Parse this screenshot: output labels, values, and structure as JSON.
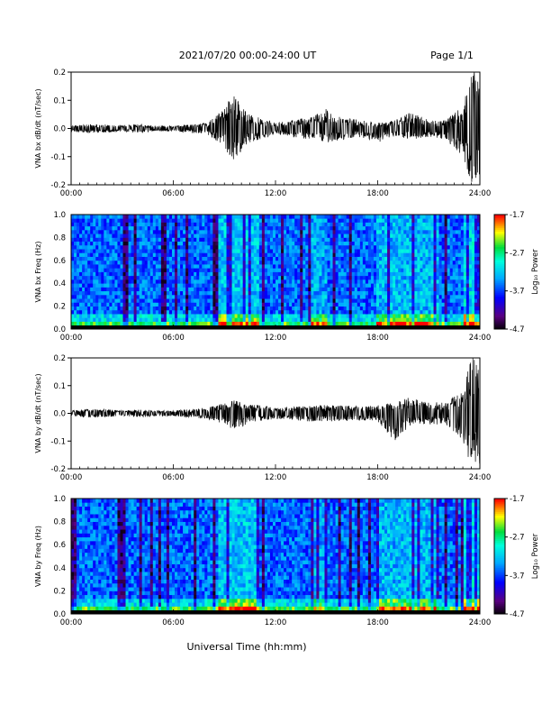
{
  "header": {
    "title": "2021/07/20  00:00-24:00 UT",
    "page": "Page 1/1"
  },
  "xaxis": {
    "label": "Universal Time (hh:mm)",
    "ticks": [
      "00:00",
      "06:00",
      "12:00",
      "18:00",
      "24:00"
    ],
    "range_hours": [
      0,
      24
    ]
  },
  "colorbar": {
    "label": "Log₁₀ Power",
    "ticks": [
      "-1.7",
      "-2.7",
      "-3.7",
      "-4.7"
    ],
    "range": [
      -4.7,
      -1.7
    ],
    "colormap": "rainbow (black-purple-blue-cyan-green-yellow-red)"
  },
  "chart_data": [
    {
      "type": "line",
      "ylabel": "VNA bx dB/dt (nT/sec)",
      "ylim": [
        -0.2,
        0.2
      ],
      "yticks": [
        "0.2",
        "0.1",
        "0.0",
        "-0.1",
        "-0.2"
      ],
      "x": [
        0,
        1,
        2,
        3,
        4,
        5,
        6,
        7,
        8,
        9,
        9.5,
        10,
        10.5,
        11,
        12,
        13,
        14,
        15,
        16,
        17,
        18,
        19,
        20,
        21,
        22,
        23,
        23.5,
        24
      ],
      "envelope_max": [
        0.01,
        0.015,
        0.015,
        0.01,
        0.015,
        0.01,
        0.01,
        0.015,
        0.02,
        0.07,
        0.13,
        0.08,
        0.05,
        0.04,
        0.02,
        0.03,
        0.04,
        0.07,
        0.04,
        0.03,
        0.02,
        0.03,
        0.06,
        0.03,
        0.03,
        0.08,
        0.2,
        0.2
      ],
      "envelope_min": [
        -0.01,
        -0.015,
        -0.015,
        -0.01,
        -0.015,
        -0.01,
        -0.01,
        -0.015,
        -0.02,
        -0.07,
        -0.12,
        -0.08,
        -0.05,
        -0.04,
        -0.02,
        -0.03,
        -0.04,
        -0.05,
        -0.04,
        -0.03,
        -0.05,
        -0.03,
        -0.04,
        -0.03,
        -0.04,
        -0.1,
        -0.2,
        -0.2
      ]
    },
    {
      "type": "heatmap",
      "ylabel": "VNA bx Freq (Hz)",
      "ylim": [
        0,
        1.0
      ],
      "yticks": [
        "1.0",
        "0.8",
        "0.6",
        "0.4",
        "0.2",
        "0.0"
      ],
      "zlim": [
        -4.7,
        -1.7
      ]
    },
    {
      "type": "line",
      "ylabel": "VNA by dB/dt (nT/sec)",
      "ylim": [
        -0.2,
        0.2
      ],
      "yticks": [
        "0.2",
        "0.1",
        "0.0",
        "-0.1",
        "-0.2"
      ],
      "x": [
        0,
        1,
        2,
        3,
        4,
        5,
        6,
        7,
        8,
        9,
        9.5,
        10,
        10.5,
        11,
        12,
        13,
        14,
        15,
        16,
        17,
        18,
        19,
        20,
        21,
        22,
        23,
        23.5,
        24
      ],
      "envelope_max": [
        0.01,
        0.015,
        0.015,
        0.01,
        0.015,
        0.01,
        0.01,
        0.015,
        0.02,
        0.04,
        0.05,
        0.04,
        0.03,
        0.03,
        0.02,
        0.025,
        0.03,
        0.03,
        0.03,
        0.025,
        0.03,
        0.04,
        0.06,
        0.04,
        0.04,
        0.08,
        0.2,
        0.2
      ],
      "envelope_min": [
        -0.01,
        -0.015,
        -0.015,
        -0.01,
        -0.015,
        -0.01,
        -0.01,
        -0.015,
        -0.02,
        -0.04,
        -0.06,
        -0.05,
        -0.03,
        -0.03,
        -0.02,
        -0.025,
        -0.03,
        -0.03,
        -0.03,
        -0.025,
        -0.03,
        -0.1,
        -0.04,
        -0.04,
        -0.04,
        -0.1,
        -0.2,
        -0.2
      ]
    },
    {
      "type": "heatmap",
      "ylabel": "VNA by Freq (Hz)",
      "ylim": [
        0,
        1.0
      ],
      "yticks": [
        "1.0",
        "0.8",
        "0.6",
        "0.4",
        "0.2",
        "0.0"
      ],
      "zlim": [
        -4.7,
        -1.7
      ]
    }
  ]
}
